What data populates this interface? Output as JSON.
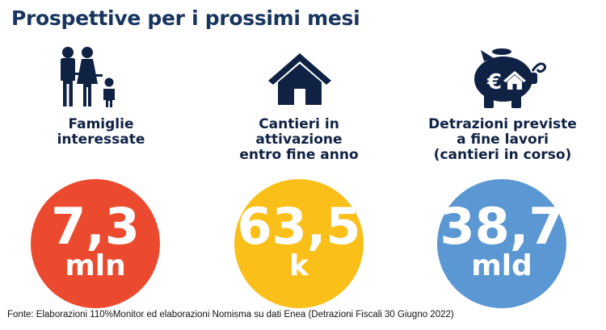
{
  "title": "Prospettive per i prossimi mesi",
  "colors": {
    "title": "#17355f",
    "text": "#0f2244",
    "red": "#ec4a2e",
    "yellow": "#fbbf1a",
    "blue": "#5b97d2"
  },
  "items": [
    {
      "icon": "family-icon",
      "label_lines": [
        "Famiglie",
        "interessate"
      ],
      "value": "7,3",
      "unit": "mln"
    },
    {
      "icon": "house-icon",
      "label_lines": [
        "Cantieri in",
        "attivazione",
        "entro fine anno"
      ],
      "value": "63,5",
      "unit": "k"
    },
    {
      "icon": "piggy-bank-icon",
      "label_lines": [
        "Detrazioni previste",
        "a fine lavori",
        "(cantieri in corso)"
      ],
      "value": "38,7",
      "unit": "mld"
    }
  ],
  "source": "Fonte: Elaborazioni 110%Monitor ed elaborazioni Nomisma su dati Enea (Detrazioni Fiscali 30 Giugno 2022)"
}
